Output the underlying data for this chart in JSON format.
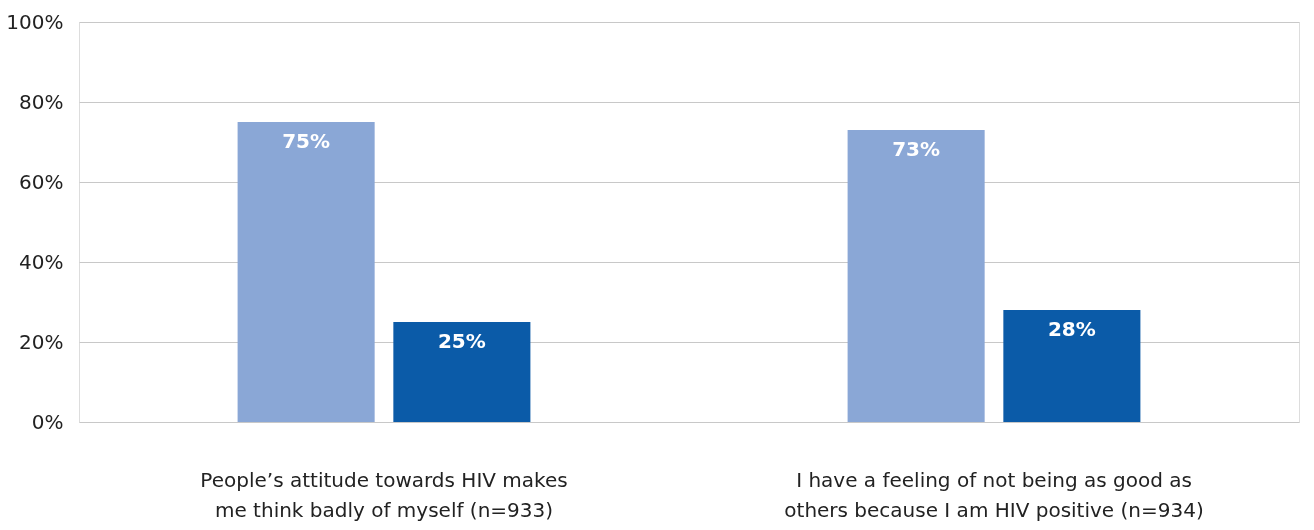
{
  "chart_data": {
    "type": "bar",
    "categories": [
      "People’s attitude towards HIV makes me think badly of myself (n=933)",
      "I have a feeling of not being as good as others because I am HIV positive (n=934)"
    ],
    "series": [
      {
        "color": "#8aa7d6",
        "values": [
          75,
          73
        ],
        "value_labels": [
          "75%",
          "73%"
        ]
      },
      {
        "color": "#0b5ba8",
        "values": [
          25,
          28
        ],
        "value_labels": [
          "25%",
          "28%"
        ]
      }
    ],
    "ylim": [
      0,
      100
    ],
    "yticks": [
      {
        "value": 0,
        "label": "0%"
      },
      {
        "value": 20,
        "label": "20%"
      },
      {
        "value": 40,
        "label": "40%"
      },
      {
        "value": 60,
        "label": "60%"
      },
      {
        "value": 80,
        "label": "80%"
      },
      {
        "value": 100,
        "label": "100%"
      }
    ],
    "grid": "y"
  }
}
